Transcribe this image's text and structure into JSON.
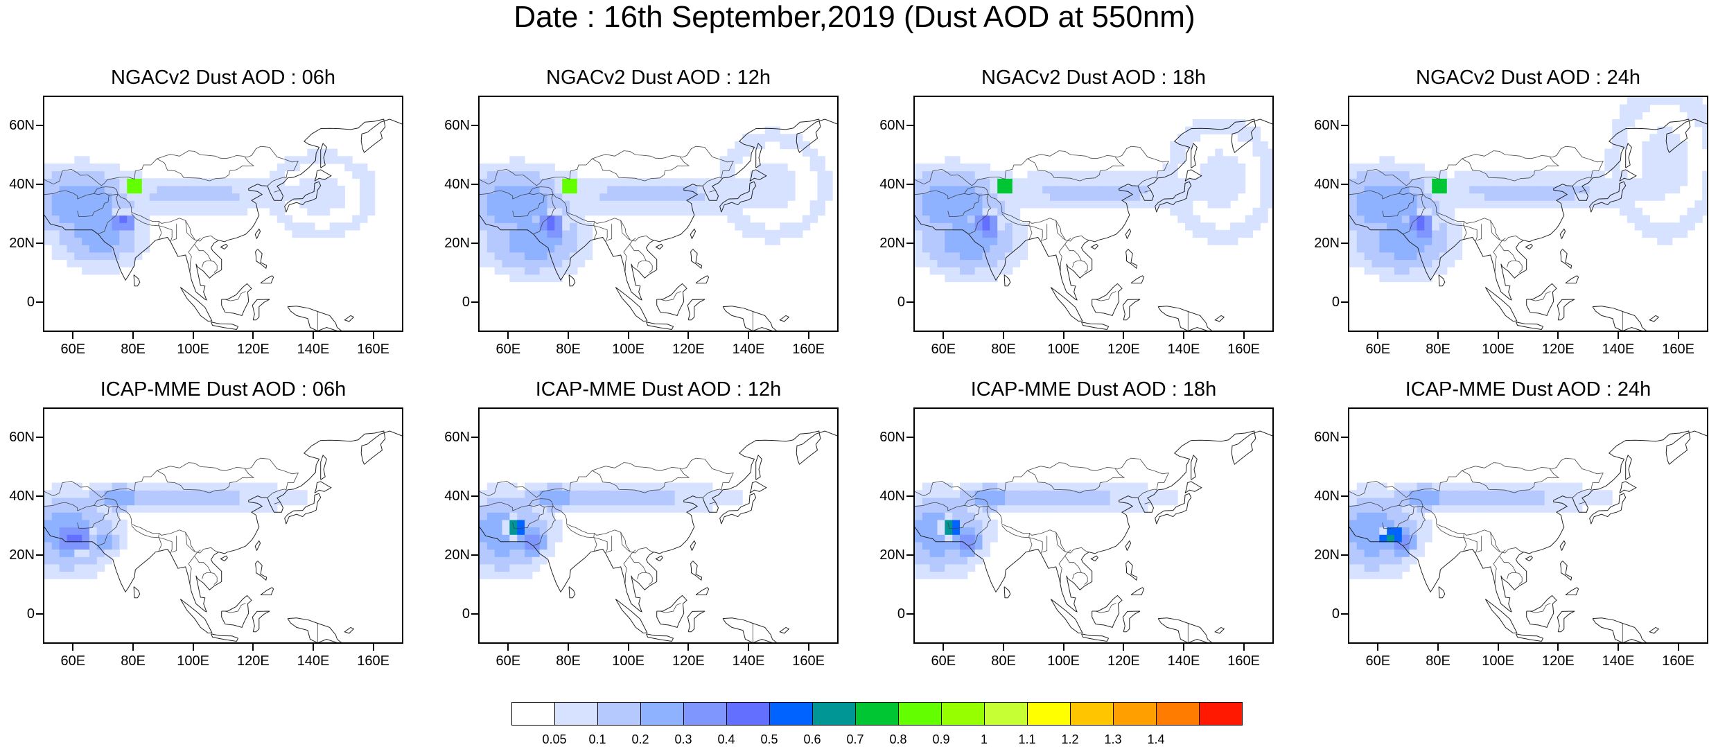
{
  "title": "Date : 16th September,2019 (Dust AOD at 550nm)",
  "panels": [
    {
      "title": "NGACv2 Dust AOD : 06h",
      "model": "NGACv2",
      "lead": "06h",
      "plumes": [
        [
          62,
          34,
          18,
          11,
          2
        ],
        [
          68,
          24,
          13,
          10,
          2
        ],
        [
          100,
          37,
          26,
          5,
          1
        ],
        [
          142,
          37,
          14,
          11,
          0
        ],
        [
          80,
          40,
          4,
          3,
          9
        ],
        [
          76,
          28,
          4,
          3,
          4
        ]
      ]
    },
    {
      "title": "NGACv2 Dust AOD : 12h",
      "model": "NGACv2",
      "lead": "12h",
      "plumes": [
        [
          62,
          34,
          18,
          11,
          2
        ],
        [
          68,
          22,
          15,
          11,
          2
        ],
        [
          108,
          37,
          32,
          5,
          1
        ],
        [
          148,
          40,
          14,
          14,
          0
        ],
        [
          80,
          40,
          4,
          3,
          9
        ],
        [
          74,
          27,
          4,
          4,
          4
        ]
      ]
    },
    {
      "title": "NGACv2 Dust AOD : 18h",
      "model": "NGACv2",
      "lead": "18h",
      "plumes": [
        [
          62,
          34,
          18,
          11,
          2
        ],
        [
          68,
          22,
          15,
          11,
          2
        ],
        [
          110,
          38,
          32,
          5,
          1
        ],
        [
          152,
          42,
          14,
          16,
          0
        ],
        [
          80,
          40,
          4,
          3,
          8
        ],
        [
          74,
          27,
          4,
          4,
          4
        ]
      ]
    },
    {
      "title": "NGACv2 Dust AOD : 24h",
      "model": "NGACv2",
      "lead": "24h",
      "plumes": [
        [
          62,
          34,
          18,
          11,
          2
        ],
        [
          68,
          22,
          15,
          11,
          2
        ],
        [
          110,
          38,
          34,
          5,
          1
        ],
        [
          155,
          48,
          14,
          20,
          0
        ],
        [
          80,
          40,
          4,
          3,
          8
        ],
        [
          74,
          27,
          4,
          4,
          4
        ]
      ]
    },
    {
      "title": "ICAP-MME Dust AOD : 06h",
      "model": "ICAP-MME",
      "lead": "06h",
      "plumes": [
        [
          58,
          28,
          14,
          12,
          2
        ],
        [
          75,
          40,
          10,
          4,
          2
        ],
        [
          100,
          40,
          28,
          4,
          1
        ],
        [
          60,
          26,
          6,
          4,
          4
        ],
        [
          70,
          25,
          5,
          3,
          2
        ]
      ]
    },
    {
      "title": "ICAP-MME Dust AOD : 12h",
      "model": "ICAP-MME",
      "lead": "12h",
      "plumes": [
        [
          58,
          28,
          14,
          12,
          2
        ],
        [
          75,
          40,
          10,
          4,
          2
        ],
        [
          100,
          40,
          28,
          4,
          1
        ],
        [
          62,
          30,
          3,
          3,
          6
        ],
        [
          68,
          25,
          6,
          4,
          3
        ]
      ]
    },
    {
      "title": "ICAP-MME Dust AOD : 18h",
      "model": "ICAP-MME",
      "lead": "18h",
      "plumes": [
        [
          58,
          28,
          14,
          12,
          2
        ],
        [
          75,
          40,
          10,
          4,
          2
        ],
        [
          100,
          40,
          28,
          4,
          1
        ],
        [
          62,
          30,
          3,
          3,
          6
        ],
        [
          68,
          25,
          6,
          4,
          3
        ]
      ]
    },
    {
      "title": "ICAP-MME Dust AOD : 24h",
      "model": "ICAP-MME",
      "lead": "24h",
      "plumes": [
        [
          58,
          28,
          14,
          12,
          2
        ],
        [
          75,
          40,
          10,
          4,
          2
        ],
        [
          100,
          40,
          28,
          4,
          1
        ],
        [
          64,
          27,
          3,
          3,
          6
        ],
        [
          68,
          25,
          6,
          4,
          3
        ]
      ]
    }
  ],
  "map": {
    "lon_range": [
      50,
      170
    ],
    "lat_range": [
      -10,
      70
    ],
    "lon_ticks": [
      60,
      80,
      100,
      120,
      140,
      160
    ],
    "lon_labels": [
      "60E",
      "80E",
      "100E",
      "120E",
      "140E",
      "160E"
    ],
    "lat_ticks": [
      0,
      20,
      40,
      60
    ],
    "lat_labels": [
      "0",
      "20N",
      "40N",
      "60N"
    ]
  },
  "colorbar": {
    "labels": [
      "0.05",
      "0.1",
      "0.2",
      "0.3",
      "0.4",
      "0.5",
      "0.6",
      "0.7",
      "0.8",
      "0.9",
      "1",
      "1.1",
      "1.2",
      "1.3",
      "1.4"
    ],
    "colors": [
      "#ffffff",
      "#d6e2ff",
      "#b5c9ff",
      "#8eb2ff",
      "#7f96ff",
      "#6370ff",
      "#0063ff",
      "#009696",
      "#00c633",
      "#63ff00",
      "#96ff00",
      "#c6ff33",
      "#ffff00",
      "#ffc600",
      "#ffa000",
      "#ff7c00",
      "#ff1900"
    ]
  }
}
